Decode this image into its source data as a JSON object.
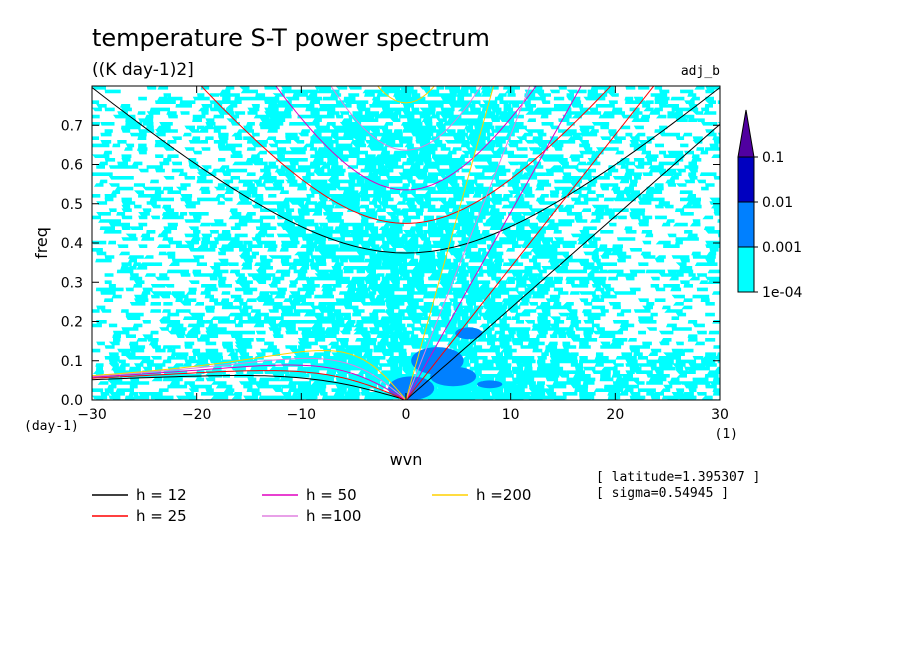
{
  "chart_data": {
    "type": "heatmap",
    "title": "temperature S-T power spectrum",
    "subtitle": "((K day-1)2]",
    "corner_label": "adj_b",
    "xlabel": "wvn",
    "ylabel": "freq",
    "x_unit": "(1)",
    "y_unit": "(day-1)",
    "xlim": [
      -30,
      30
    ],
    "ylim": [
      0,
      0.8
    ],
    "xticks": [
      -30,
      -20,
      -10,
      0,
      10,
      20,
      30
    ],
    "xtick_labels": [
      "−30",
      "−20",
      "−10",
      "0",
      "10",
      "20",
      "30"
    ],
    "yticks": [
      0.0,
      0.1,
      0.2,
      0.3,
      0.4,
      0.5,
      0.6,
      0.7
    ],
    "ytick_labels": [
      "0.0",
      "0.1",
      "0.2",
      "0.3",
      "0.4",
      "0.5",
      "0.6",
      "0.7"
    ],
    "colorbar": {
      "levels": [
        0.0001,
        0.001,
        0.01,
        0.1
      ],
      "labels": [
        "1e-04",
        "0.001",
        "0.01",
        "0.1"
      ],
      "colors": [
        "#00ffff",
        "#0080ff",
        "#0000c0",
        "#5000a0"
      ],
      "extend": "max"
    },
    "dispersion_curves": [
      {
        "name": "h = 12",
        "color": "#000000"
      },
      {
        "name": "h = 25",
        "color": "#ff0000"
      },
      {
        "name": "h = 50",
        "color": "#e000c0"
      },
      {
        "name": "h =100",
        "color": "#e080e0"
      },
      {
        "name": "h =200",
        "color": "#ffd000"
      }
    ],
    "annotations": [
      "[ latitude=1.395307 ]",
      "[ sigma=0.54945 ]"
    ],
    "grid": false
  }
}
